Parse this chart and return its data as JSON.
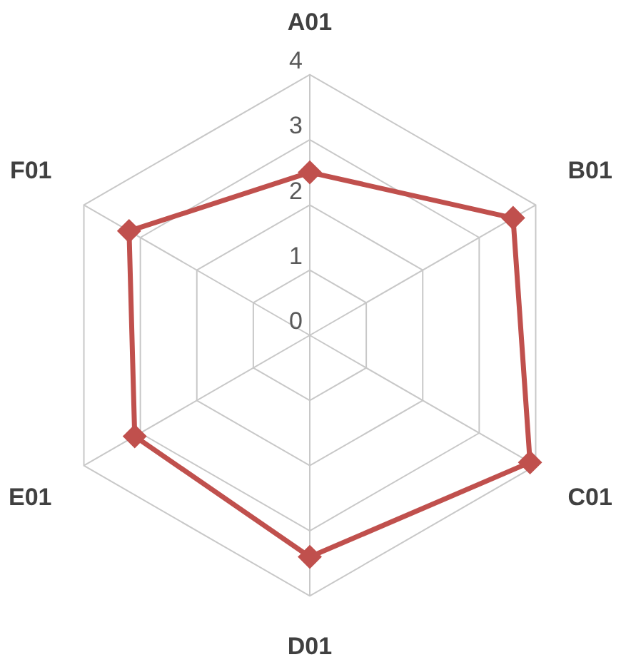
{
  "chart_data": {
    "type": "radar",
    "categories": [
      "A01",
      "B01",
      "C01",
      "D01",
      "E01",
      "F01"
    ],
    "series": [
      {
        "color": "#c0504d",
        "values": [
          2.5,
          3.6,
          3.9,
          3.4,
          3.1,
          3.2
        ]
      }
    ],
    "ylim": [
      0,
      4
    ],
    "yticks": [
      0,
      1,
      2,
      3,
      4
    ],
    "grid": true,
    "legend": false,
    "marker": "diamond",
    "line_style": "solid"
  }
}
